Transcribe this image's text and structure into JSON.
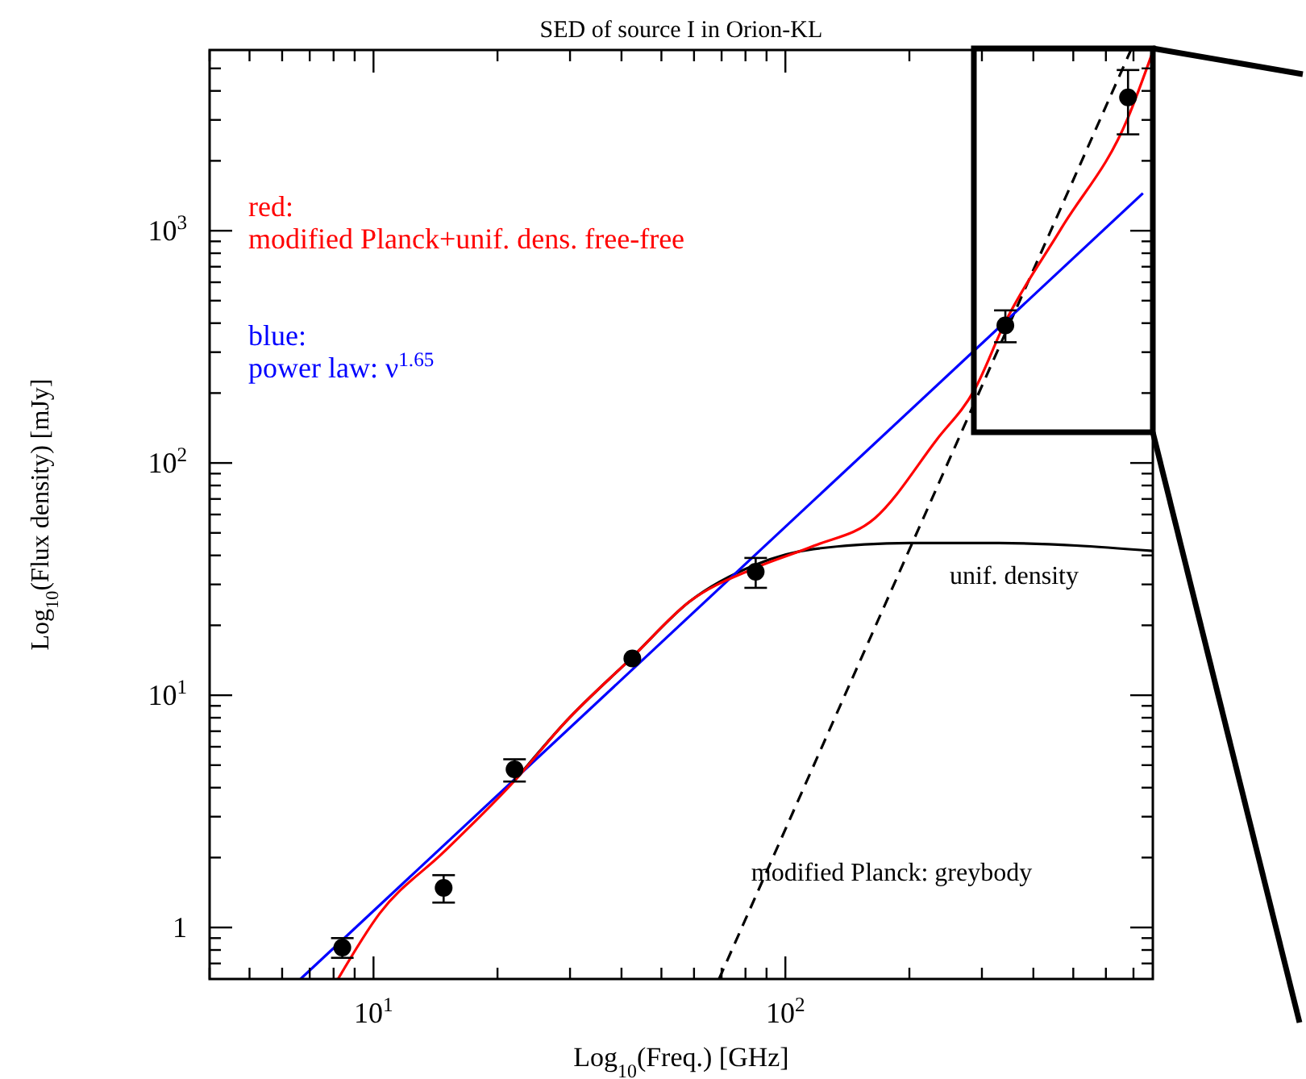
{
  "chart_data": {
    "type": "line",
    "title": "SED of source I in Orion-KL",
    "xlabel": "Log$_{10}$(Freq.) [GHz]",
    "ylabel": "Log$_{10}$(Flux density) [mJy]",
    "log": "xy",
    "xlim": [
      4,
      780
    ],
    "ylim": [
      0.6,
      6000
    ],
    "xticks": [
      {
        "value": 4,
        "label": null
      },
      {
        "value": 5,
        "label": null
      },
      {
        "value": 6,
        "label": null
      },
      {
        "value": 7,
        "label": null
      },
      {
        "value": 8,
        "label": null
      },
      {
        "value": 9,
        "label": null
      },
      {
        "value": 10,
        "label": "10$^{1}$"
      },
      {
        "value": 20,
        "label": null
      },
      {
        "value": 30,
        "label": null
      },
      {
        "value": 40,
        "label": null
      },
      {
        "value": 50,
        "label": null
      },
      {
        "value": 60,
        "label": null
      },
      {
        "value": 70,
        "label": null
      },
      {
        "value": 80,
        "label": null
      },
      {
        "value": 90,
        "label": null
      },
      {
        "value": 100,
        "label": "10$^{2}$"
      },
      {
        "value": 200,
        "label": null
      },
      {
        "value": 300,
        "label": null
      },
      {
        "value": 400,
        "label": null
      },
      {
        "value": 500,
        "label": null
      },
      {
        "value": 600,
        "label": null
      },
      {
        "value": 700,
        "label": null
      }
    ],
    "yticks": [
      {
        "value": 0.7,
        "label": null
      },
      {
        "value": 0.8,
        "label": null
      },
      {
        "value": 0.9,
        "label": null
      },
      1,
      {
        "value": 2,
        "label": null
      },
      {
        "value": 3,
        "label": null
      },
      {
        "value": 4,
        "label": null
      },
      {
        "value": 5,
        "label": null
      },
      {
        "value": 6,
        "label": null
      },
      {
        "value": 7,
        "label": null
      },
      {
        "value": 8,
        "label": null
      },
      {
        "value": 9,
        "label": null
      },
      {
        "value": 10,
        "label": "10$^{1}$"
      },
      {
        "value": 20,
        "label": null
      },
      {
        "value": 30,
        "label": null
      },
      {
        "value": 40,
        "label": null
      },
      {
        "value": 50,
        "label": null
      },
      {
        "value": 60,
        "label": null
      },
      {
        "value": 70,
        "label": null
      },
      {
        "value": 80,
        "label": null
      },
      {
        "value": 90,
        "label": null
      },
      {
        "value": 100,
        "label": "10$^{2}$"
      },
      {
        "value": 200,
        "label": null
      },
      {
        "value": 300,
        "label": null
      },
      {
        "value": 400,
        "label": null
      },
      {
        "value": 500,
        "label": null
      },
      {
        "value": 600,
        "label": null
      },
      {
        "value": 700,
        "label": null
      },
      {
        "value": 800,
        "label": null
      },
      {
        "value": 900,
        "label": null
      },
      {
        "value": 1000,
        "label": "10$^{3}$"
      },
      {
        "value": 2000,
        "label": null
      },
      {
        "value": 3000,
        "label": null
      },
      {
        "value": 4000,
        "label": null
      },
      {
        "value": 5000,
        "label": null
      }
    ],
    "legend": "top left",
    "annotations": [
      "unif. density",
      "modified Planck: greybody"
    ],
    "series": [
      {
        "type": "line",
        "name": "red: modified Planck+unif. dens. free-free",
        "color": "#ff0000",
        "x": [
          8.2,
          10.35,
          14.8,
          22,
          29.2,
          42.5,
          58.5,
          84.7,
          117,
          165,
          233,
          288,
          342,
          467,
          679,
          780
        ],
        "values": [
          0.6,
          1.15,
          2.11,
          4.28,
          7.65,
          14.6,
          25.3,
          35.4,
          43.9,
          57.9,
          126,
          207,
          405,
          1020,
          3070,
          5910
        ]
      },
      {
        "type": "line",
        "name": "blue: power law: ν$^{1.65}$",
        "color": "#0000ff",
        "x": [
          6.65,
          738
        ],
        "values": [
          0.6,
          1450
        ]
      },
      {
        "type": "line",
        "color": "#000000",
        "x": [
          22,
          29.2,
          42.5,
          58.5,
          84.7,
          117,
          200,
          330,
          780
        ],
        "values": [
          4.28,
          7.65,
          14.6,
          25.3,
          36.5,
          42.6,
          45.2,
          45.2,
          41.8
        ]
      },
      {
        "type": "line",
        "color": "#000000",
        "line_style": "dashed",
        "x": [
          69,
          690
        ],
        "values": [
          0.6,
          6000
        ]
      },
      {
        "type": "scatter",
        "color": "#000000",
        "marker": "circle",
        "x": [
          8.4,
          14.8,
          22,
          42.5,
          84.7,
          342,
          679
        ],
        "values": [
          0.82,
          1.48,
          4.8,
          14.4,
          34,
          391,
          3750
        ],
        "errors": [
          [
            0.74,
            0.9
          ],
          [
            1.28,
            1.68
          ],
          [
            4.25,
            5.3
          ],
          null,
          [
            29,
            39
          ],
          [
            331,
            454
          ],
          [
            2600,
            4920
          ]
        ]
      }
    ]
  }
}
